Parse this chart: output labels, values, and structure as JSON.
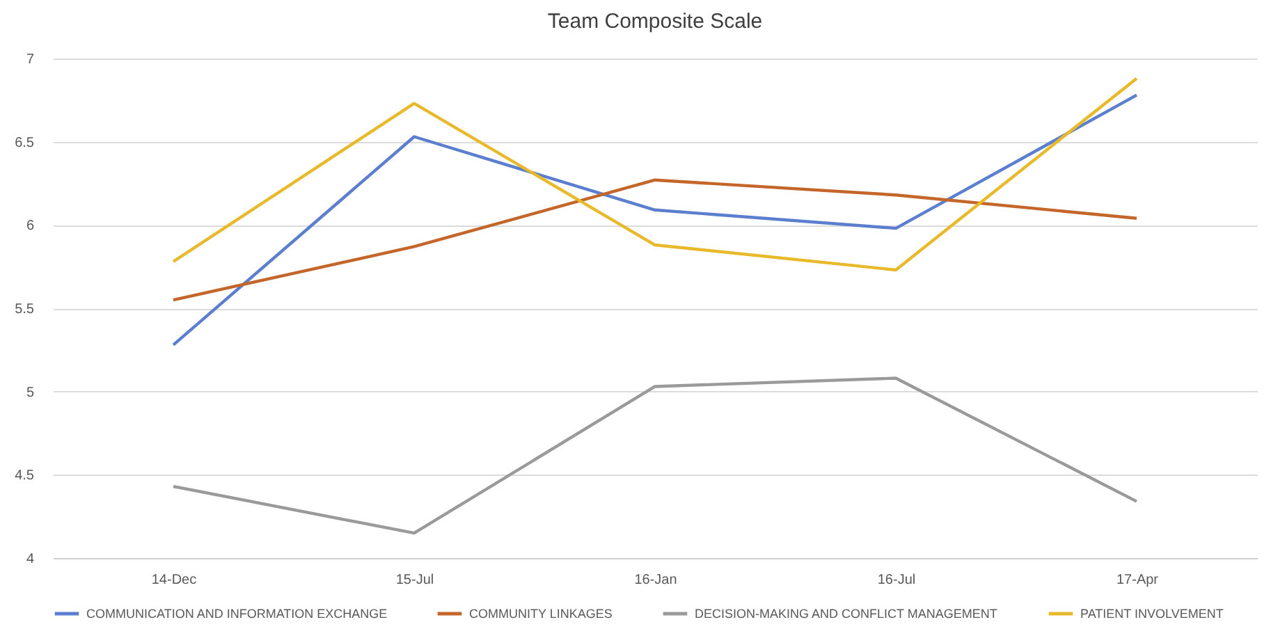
{
  "chart_data": {
    "type": "line",
    "title": "Team Composite Scale",
    "categories": [
      "14-Dec",
      "15-Jul",
      "16-Jan",
      "16-Jul",
      "17-Apr"
    ],
    "series": [
      {
        "name": "COMMUNICATION AND INFORMATION EXCHANGE",
        "color": "#5b7fce",
        "values": [
          5.28,
          6.53,
          6.09,
          5.98,
          6.78
        ]
      },
      {
        "name": "COMMUNITY LINKAGES",
        "color": "#c4662a",
        "values": [
          5.55,
          5.87,
          6.27,
          6.18,
          6.04
        ]
      },
      {
        "name": "DECISION-MAKING AND CONFLICT MANAGEMENT",
        "color": "#9a9a9a",
        "values": [
          4.43,
          4.15,
          5.03,
          5.08,
          4.34
        ]
      },
      {
        "name": "PATIENT INVOLVEMENT",
        "color": "#e8b92a",
        "values": [
          5.78,
          6.73,
          5.88,
          5.73,
          6.88
        ]
      }
    ],
    "ylim": [
      4,
      7
    ],
    "yticks": [
      4,
      4.5,
      5,
      5.5,
      6,
      6.5,
      7
    ],
    "grid": "y",
    "legend": "bottom",
    "marker": "none",
    "line_style": "solid"
  }
}
